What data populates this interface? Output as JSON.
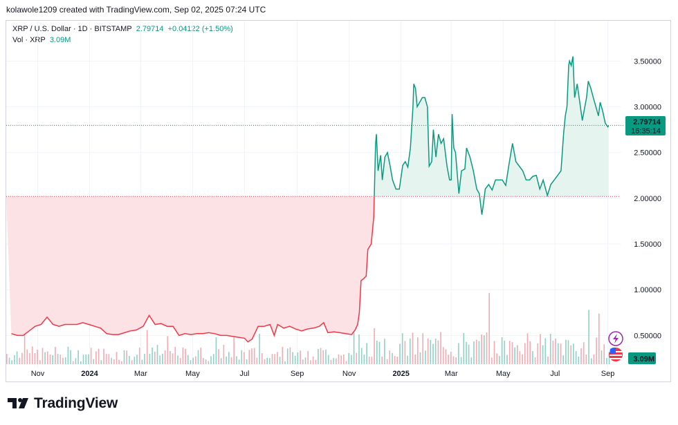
{
  "header": {
    "created_text": "kolawole1209 created with TradingView.com, Sep 02, 2025 07:24 UTC"
  },
  "legend": {
    "symbol": "XRP / U.S. Dollar · 1D · BITSTAMP",
    "last": "2.79714",
    "change": "+0.04122 (+1.50%)",
    "vol_label": "Vol · XRP",
    "vol_value": "3.09M"
  },
  "badges": {
    "price": "2.79714",
    "countdown": "16:35:14",
    "volume": "3.09M"
  },
  "footer": {
    "brand": "TradingView"
  },
  "colors": {
    "up": "#089981",
    "down": "#f23645",
    "up_fill": "#e6f4f0",
    "down_fill": "#fde2e5",
    "grid": "#f0f3fa"
  },
  "chart_data": {
    "type": "area",
    "title": "XRP / U.S. Dollar · 1D · BITSTAMP",
    "y_ticks": [
      0.5,
      1.0,
      1.5,
      2.0,
      2.5,
      3.0,
      3.5
    ],
    "y_tick_labels": [
      "0.50000",
      "1.00000",
      "1.50000",
      "2.00000",
      "2.50000",
      "3.00000",
      "3.50000"
    ],
    "x_tick_labels": [
      "Nov",
      "2024",
      "Mar",
      "May",
      "Jul",
      "Sep",
      "Nov",
      "2025",
      "Mar",
      "May",
      "Jul",
      "Sep"
    ],
    "x_tick_dates": [
      "2023-11-01",
      "2024-01-01",
      "2024-03-01",
      "2024-05-01",
      "2024-07-01",
      "2024-09-01",
      "2024-11-01",
      "2025-01-01",
      "2025-03-01",
      "2025-05-01",
      "2025-07-01",
      "2025-09-01"
    ],
    "baseline": 2.02,
    "last_price": 2.79714,
    "ylim": [
      0.1,
      3.85
    ],
    "series": [
      {
        "values": [
          [
            "2023-10-01",
            0.52
          ],
          [
            "2023-10-08",
            0.5
          ],
          [
            "2023-10-15",
            0.5
          ],
          [
            "2023-10-22",
            0.55
          ],
          [
            "2023-10-29",
            0.6
          ],
          [
            "2023-11-05",
            0.62
          ],
          [
            "2023-11-12",
            0.7
          ],
          [
            "2023-11-19",
            0.62
          ],
          [
            "2023-11-26",
            0.6
          ],
          [
            "2023-12-03",
            0.62
          ],
          [
            "2023-12-10",
            0.62
          ],
          [
            "2023-12-17",
            0.62
          ],
          [
            "2023-12-24",
            0.64
          ],
          [
            "2023-12-31",
            0.62
          ],
          [
            "2024-01-07",
            0.6
          ],
          [
            "2024-01-14",
            0.58
          ],
          [
            "2024-01-21",
            0.52
          ],
          [
            "2024-01-28",
            0.51
          ],
          [
            "2024-02-04",
            0.51
          ],
          [
            "2024-02-11",
            0.53
          ],
          [
            "2024-02-18",
            0.55
          ],
          [
            "2024-02-25",
            0.56
          ],
          [
            "2024-03-04",
            0.6
          ],
          [
            "2024-03-11",
            0.72
          ],
          [
            "2024-03-18",
            0.62
          ],
          [
            "2024-03-25",
            0.63
          ],
          [
            "2024-04-01",
            0.6
          ],
          [
            "2024-04-08",
            0.6
          ],
          [
            "2024-04-15",
            0.5
          ],
          [
            "2024-04-22",
            0.52
          ],
          [
            "2024-04-29",
            0.51
          ],
          [
            "2024-05-06",
            0.52
          ],
          [
            "2024-05-13",
            0.52
          ],
          [
            "2024-05-20",
            0.53
          ],
          [
            "2024-05-27",
            0.52
          ],
          [
            "2024-06-03",
            0.5
          ],
          [
            "2024-06-10",
            0.5
          ],
          [
            "2024-06-17",
            0.49
          ],
          [
            "2024-06-24",
            0.48
          ],
          [
            "2024-07-01",
            0.47
          ],
          [
            "2024-07-05",
            0.43
          ],
          [
            "2024-07-10",
            0.46
          ],
          [
            "2024-07-17",
            0.6
          ],
          [
            "2024-07-24",
            0.6
          ],
          [
            "2024-07-31",
            0.62
          ],
          [
            "2024-08-05",
            0.5
          ],
          [
            "2024-08-09",
            0.62
          ],
          [
            "2024-08-16",
            0.58
          ],
          [
            "2024-08-23",
            0.6
          ],
          [
            "2024-08-30",
            0.57
          ],
          [
            "2024-09-06",
            0.55
          ],
          [
            "2024-09-13",
            0.57
          ],
          [
            "2024-09-20",
            0.58
          ],
          [
            "2024-09-27",
            0.6
          ],
          [
            "2024-10-02",
            0.64
          ],
          [
            "2024-10-07",
            0.53
          ],
          [
            "2024-10-14",
            0.54
          ],
          [
            "2024-10-21",
            0.53
          ],
          [
            "2024-10-28",
            0.52
          ],
          [
            "2024-11-04",
            0.51
          ],
          [
            "2024-11-08",
            0.56
          ],
          [
            "2024-11-11",
            0.62
          ],
          [
            "2024-11-13",
            0.75
          ],
          [
            "2024-11-15",
            1.1
          ],
          [
            "2024-11-18",
            1.12
          ],
          [
            "2024-11-21",
            1.15
          ],
          [
            "2024-11-23",
            1.44
          ],
          [
            "2024-11-27",
            1.5
          ],
          [
            "2024-11-30",
            1.8
          ],
          [
            "2024-12-02",
            2.58
          ],
          [
            "2024-12-03",
            2.7
          ],
          [
            "2024-12-05",
            2.3
          ],
          [
            "2024-12-08",
            2.47
          ],
          [
            "2024-12-10",
            2.2
          ],
          [
            "2024-12-13",
            2.45
          ],
          [
            "2024-12-16",
            2.5
          ],
          [
            "2024-12-19",
            2.36
          ],
          [
            "2024-12-22",
            2.2
          ],
          [
            "2024-12-26",
            2.1
          ],
          [
            "2024-12-30",
            2.1
          ],
          [
            "2025-01-03",
            2.36
          ],
          [
            "2025-01-06",
            2.4
          ],
          [
            "2025-01-09",
            2.34
          ],
          [
            "2025-01-12",
            2.55
          ],
          [
            "2025-01-15",
            3.0
          ],
          [
            "2025-01-16",
            3.25
          ],
          [
            "2025-01-18",
            3.2
          ],
          [
            "2025-01-20",
            3.0
          ],
          [
            "2025-01-23",
            3.05
          ],
          [
            "2025-01-26",
            3.1
          ],
          [
            "2025-01-29",
            3.1
          ],
          [
            "2025-02-01",
            3.0
          ],
          [
            "2025-02-03",
            2.35
          ],
          [
            "2025-02-06",
            2.4
          ],
          [
            "2025-02-08",
            2.75
          ],
          [
            "2025-02-11",
            2.45
          ],
          [
            "2025-02-14",
            2.7
          ],
          [
            "2025-02-17",
            2.6
          ],
          [
            "2025-02-20",
            2.65
          ],
          [
            "2025-02-24",
            2.35
          ],
          [
            "2025-02-27",
            2.2
          ],
          [
            "2025-03-01",
            2.2
          ],
          [
            "2025-03-02",
            2.92
          ],
          [
            "2025-03-04",
            2.55
          ],
          [
            "2025-03-06",
            2.5
          ],
          [
            "2025-03-10",
            2.05
          ],
          [
            "2025-03-13",
            2.3
          ],
          [
            "2025-03-17",
            2.32
          ],
          [
            "2025-03-19",
            2.55
          ],
          [
            "2025-03-23",
            2.45
          ],
          [
            "2025-03-27",
            2.3
          ],
          [
            "2025-03-31",
            2.1
          ],
          [
            "2025-04-03",
            2.05
          ],
          [
            "2025-04-06",
            1.82
          ],
          [
            "2025-04-08",
            1.95
          ],
          [
            "2025-04-10",
            2.1
          ],
          [
            "2025-04-14",
            2.15
          ],
          [
            "2025-04-18",
            2.09
          ],
          [
            "2025-04-22",
            2.2
          ],
          [
            "2025-04-26",
            2.2
          ],
          [
            "2025-04-30",
            2.2
          ],
          [
            "2025-05-04",
            2.14
          ],
          [
            "2025-05-08",
            2.38
          ],
          [
            "2025-05-12",
            2.6
          ],
          [
            "2025-05-16",
            2.4
          ],
          [
            "2025-05-20",
            2.35
          ],
          [
            "2025-05-24",
            2.3
          ],
          [
            "2025-05-28",
            2.2
          ],
          [
            "2025-06-01",
            2.2
          ],
          [
            "2025-06-05",
            2.24
          ],
          [
            "2025-06-09",
            2.25
          ],
          [
            "2025-06-13",
            2.1
          ],
          [
            "2025-06-17",
            2.2
          ],
          [
            "2025-06-22",
            2.03
          ],
          [
            "2025-06-26",
            2.15
          ],
          [
            "2025-06-30",
            2.2
          ],
          [
            "2025-07-04",
            2.25
          ],
          [
            "2025-07-08",
            2.3
          ],
          [
            "2025-07-11",
            2.7
          ],
          [
            "2025-07-13",
            2.9
          ],
          [
            "2025-07-15",
            3.0
          ],
          [
            "2025-07-17",
            3.45
          ],
          [
            "2025-07-18",
            3.5
          ],
          [
            "2025-07-20",
            3.45
          ],
          [
            "2025-07-22",
            3.55
          ],
          [
            "2025-07-24",
            3.1
          ],
          [
            "2025-07-27",
            3.25
          ],
          [
            "2025-07-30",
            3.05
          ],
          [
            "2025-08-02",
            2.85
          ],
          [
            "2025-08-04",
            2.95
          ],
          [
            "2025-08-07",
            3.1
          ],
          [
            "2025-08-09",
            3.28
          ],
          [
            "2025-08-12",
            3.2
          ],
          [
            "2025-08-15",
            3.1
          ],
          [
            "2025-08-18",
            3.0
          ],
          [
            "2025-08-21",
            2.9
          ],
          [
            "2025-08-23",
            3.05
          ],
          [
            "2025-08-26",
            2.95
          ],
          [
            "2025-08-29",
            2.82
          ],
          [
            "2025-09-01",
            2.78
          ],
          [
            "2025-09-02",
            2.79714
          ]
        ]
      }
    ]
  }
}
